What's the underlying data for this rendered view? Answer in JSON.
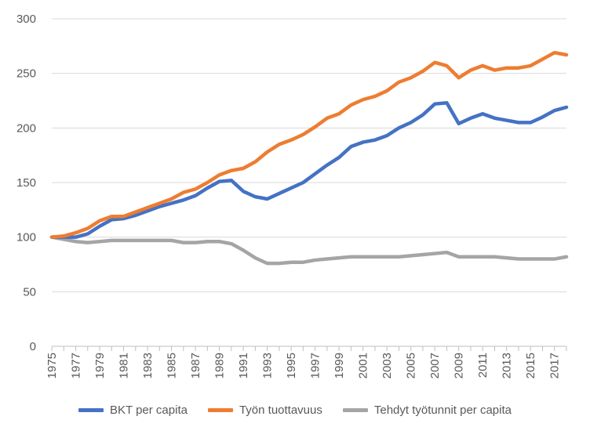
{
  "chart_data": {
    "type": "line",
    "title": "",
    "xlabel": "",
    "ylabel": "",
    "ylim": [
      0,
      300
    ],
    "yticks": [
      0,
      50,
      100,
      150,
      200,
      250,
      300
    ],
    "grid": "horizontal",
    "legend_position": "bottom",
    "x": [
      1975,
      1976,
      1977,
      1978,
      1979,
      1980,
      1981,
      1982,
      1983,
      1984,
      1985,
      1986,
      1987,
      1988,
      1989,
      1990,
      1991,
      1992,
      1993,
      1994,
      1995,
      1996,
      1997,
      1998,
      1999,
      2000,
      2001,
      2002,
      2003,
      2004,
      2005,
      2006,
      2007,
      2008,
      2009,
      2010,
      2011,
      2012,
      2013,
      2014,
      2015,
      2016,
      2017,
      2018
    ],
    "xtick_labels": [
      "1975",
      "1977",
      "1979",
      "1981",
      "1983",
      "1985",
      "1987",
      "1989",
      "1991",
      "1993",
      "1995",
      "1997",
      "1999",
      "2001",
      "2003",
      "2005",
      "2007",
      "2009",
      "2011",
      "2013",
      "2015",
      "2017"
    ],
    "series": [
      {
        "name": "BKT per capita",
        "color": "#4472C4",
        "values": [
          100,
          100,
          100,
          103,
          110,
          116,
          117,
          120,
          124,
          128,
          131,
          134,
          138,
          145,
          151,
          152,
          142,
          137,
          135,
          140,
          145,
          150,
          158,
          166,
          173,
          183,
          187,
          189,
          193,
          200,
          205,
          212,
          222,
          223,
          204,
          209,
          213,
          209,
          207,
          205,
          205,
          210,
          216,
          219
        ]
      },
      {
        "name": "Työn tuottavuus",
        "color": "#ED7D31",
        "values": [
          100,
          101,
          104,
          108,
          115,
          119,
          119,
          123,
          127,
          131,
          135,
          141,
          144,
          150,
          157,
          161,
          163,
          169,
          178,
          185,
          189,
          194,
          201,
          209,
          213,
          221,
          226,
          229,
          234,
          242,
          246,
          252,
          260,
          257,
          246,
          253,
          257,
          253,
          255,
          255,
          257,
          263,
          269,
          267
        ]
      },
      {
        "name": "Tehdyt työtunnit per capita",
        "color": "#A5A5A5",
        "values": [
          100,
          98,
          96,
          95,
          96,
          97,
          97,
          97,
          97,
          97,
          97,
          95,
          95,
          96,
          96,
          94,
          88,
          81,
          76,
          76,
          77,
          77,
          79,
          80,
          81,
          82,
          82,
          82,
          82,
          82,
          83,
          84,
          85,
          86,
          82,
          82,
          82,
          82,
          81,
          80,
          80,
          80,
          80,
          82
        ]
      }
    ]
  }
}
